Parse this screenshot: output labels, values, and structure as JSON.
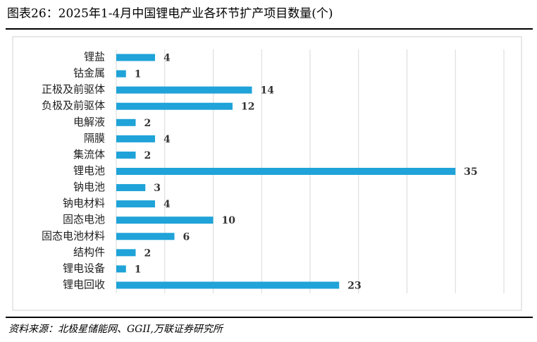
{
  "chart_data": {
    "type": "bar",
    "orientation": "horizontal",
    "title": "图表26：2025年1-4月中国锂电产业各环节扩产项目数量(个)",
    "source": "资料来源：北极星储能网、GGII,万联证券研究所",
    "categories": [
      "锂盐",
      "钴金属",
      "正极及前驱体",
      "负极及前驱体",
      "电解液",
      "隔膜",
      "集流体",
      "锂电池",
      "钠电池",
      "钠电材料",
      "固态电池",
      "固态电池材料",
      "结构件",
      "锂电设备",
      "锂电回收"
    ],
    "values": [
      4,
      1,
      14,
      12,
      2,
      4,
      2,
      35,
      3,
      4,
      10,
      6,
      2,
      1,
      23
    ],
    "color": "#1fa3d8",
    "xlim": [
      0,
      40
    ],
    "xgrid": [
      0,
      5,
      10,
      15,
      20,
      25,
      30,
      35,
      40
    ],
    "grid": true
  }
}
